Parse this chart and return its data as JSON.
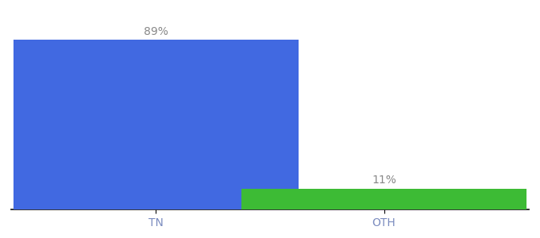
{
  "categories": [
    "TN",
    "OTH"
  ],
  "values": [
    89,
    11
  ],
  "bar_colors": [
    "#4169e1",
    "#3dbb35"
  ],
  "labels": [
    "89%",
    "11%"
  ],
  "background_color": "#ffffff",
  "ylim": [
    0,
    100
  ],
  "bar_width": 0.55,
  "label_fontsize": 10,
  "tick_fontsize": 10,
  "label_color": "#888888",
  "tick_color": "#7a8bbf",
  "spine_color": "#111111"
}
